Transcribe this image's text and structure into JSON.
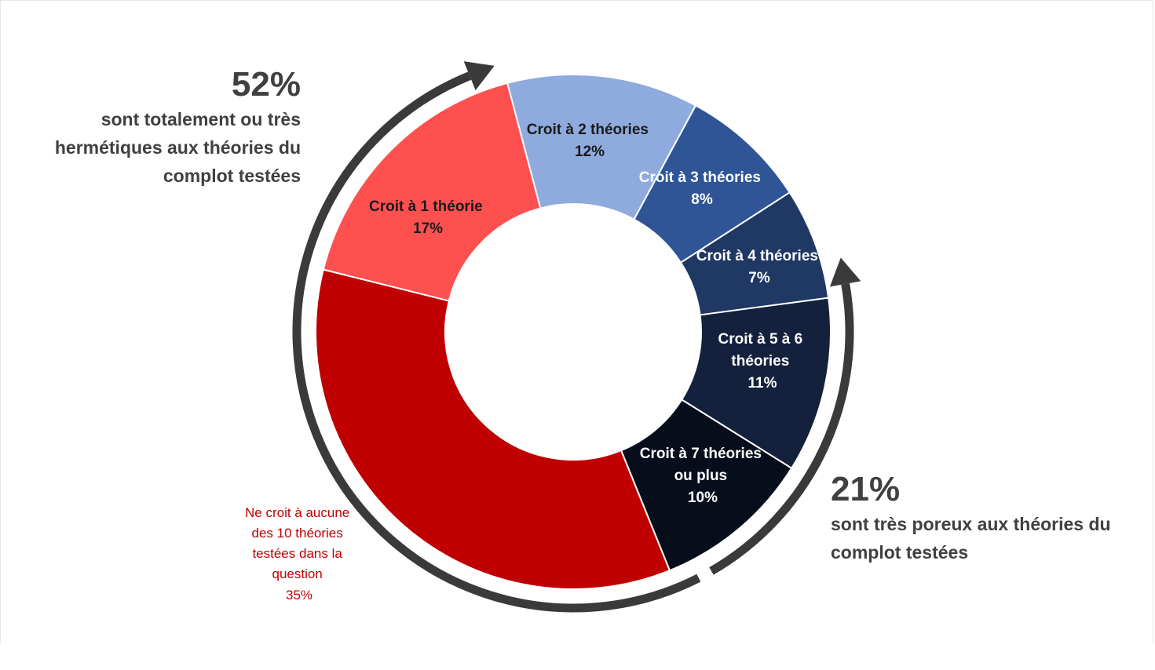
{
  "chart_data": {
    "type": "pie",
    "donut": true,
    "slices": [
      {
        "label": "Croit à 1 théorie",
        "value_label": "17%",
        "value": 17,
        "color": "#ff5050"
      },
      {
        "label": "Croit à 2 théories",
        "value_label": "12%",
        "value": 12,
        "color": "#8faadc"
      },
      {
        "label": "Croit à 3 théories",
        "value_label": "8%",
        "value": 8,
        "color": "#2f5597"
      },
      {
        "label": "Croit à 4 théories",
        "value_label": "7%",
        "value": 7,
        "color": "#203864"
      },
      {
        "label": "Croit à 5 à 6 théories",
        "value_label": "11%",
        "value": 11,
        "color": "#14213d"
      },
      {
        "label": "Croit à 7 théories ou plus",
        "value_label": "10%",
        "value": 10,
        "color": "#070d1a"
      },
      {
        "label": "Ne croit à aucune des 10 théories testées dans la question",
        "value_label": "35%",
        "value": 35,
        "color": "#c00000"
      }
    ],
    "arrow_color": "#3a3a3a"
  },
  "callouts": {
    "left": {
      "value": "52%",
      "text": "sont totalement ou très hermétiques aux théories du complot testées"
    },
    "right": {
      "value": "21%",
      "text": "sont très poreux aux théories du complot testées"
    }
  }
}
